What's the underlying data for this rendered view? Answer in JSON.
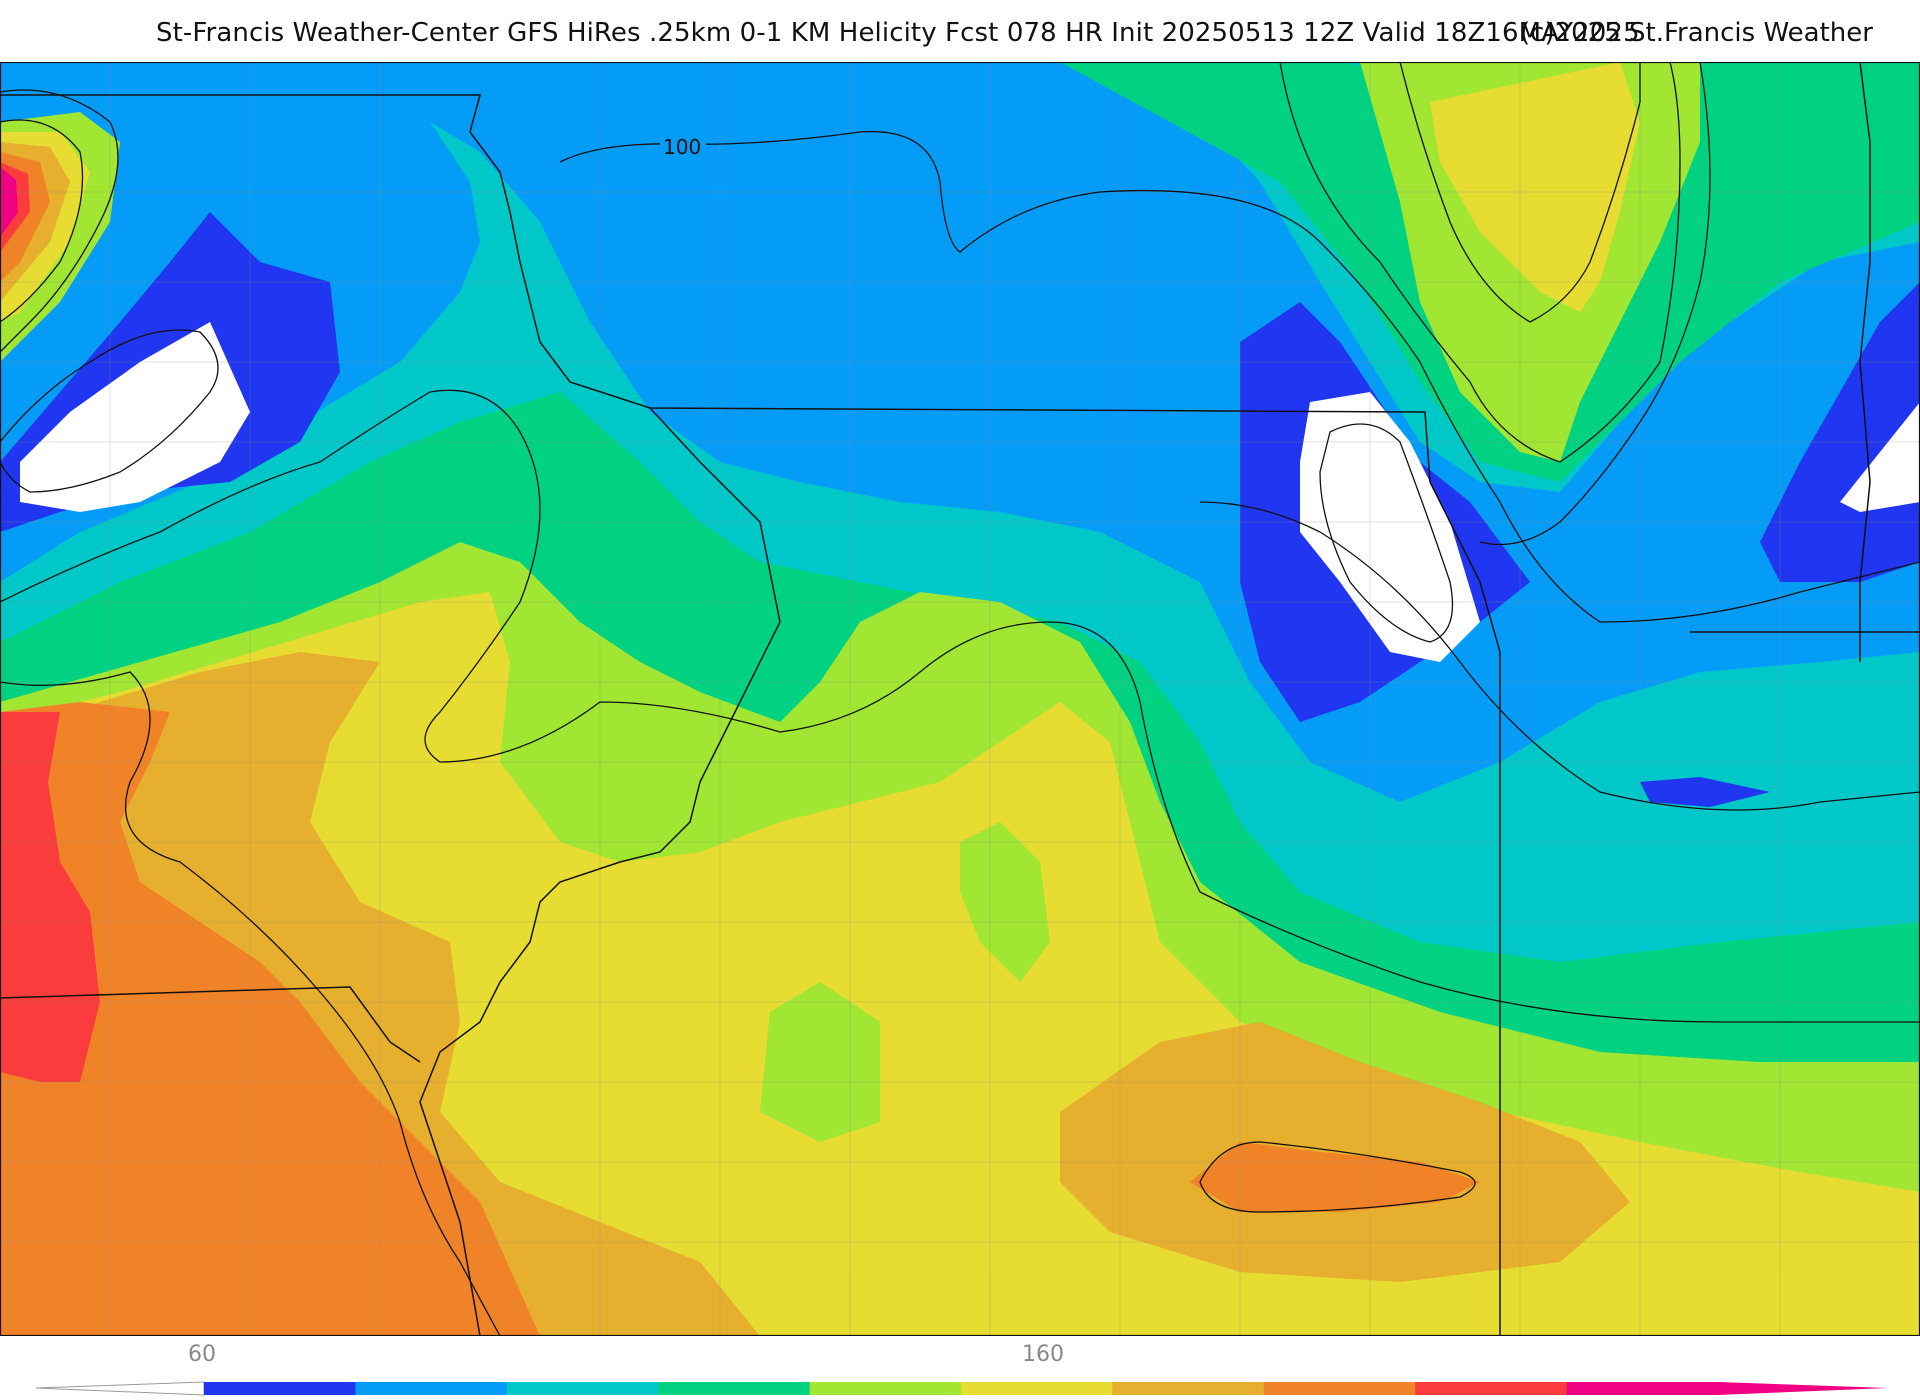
{
  "header": {
    "title": "St-Francis Weather-Center GFS HiRes .25km 0-1 KM Helicity Fcst 078 HR Init 20250513 12Z  Valid 18Z16MAY2025",
    "copyright": "(c)2025 St.Francis Weather"
  },
  "map": {
    "contour_label": "100"
  },
  "legend": {
    "ticks": [
      "60",
      "160"
    ],
    "colors": [
      "#2036f0",
      "#059cf8",
      "#00c8c8",
      "#00d282",
      "#a0e632",
      "#e6dc32",
      "#e6af2d",
      "#f08228",
      "#fa3c3c",
      "#f00082"
    ]
  }
}
